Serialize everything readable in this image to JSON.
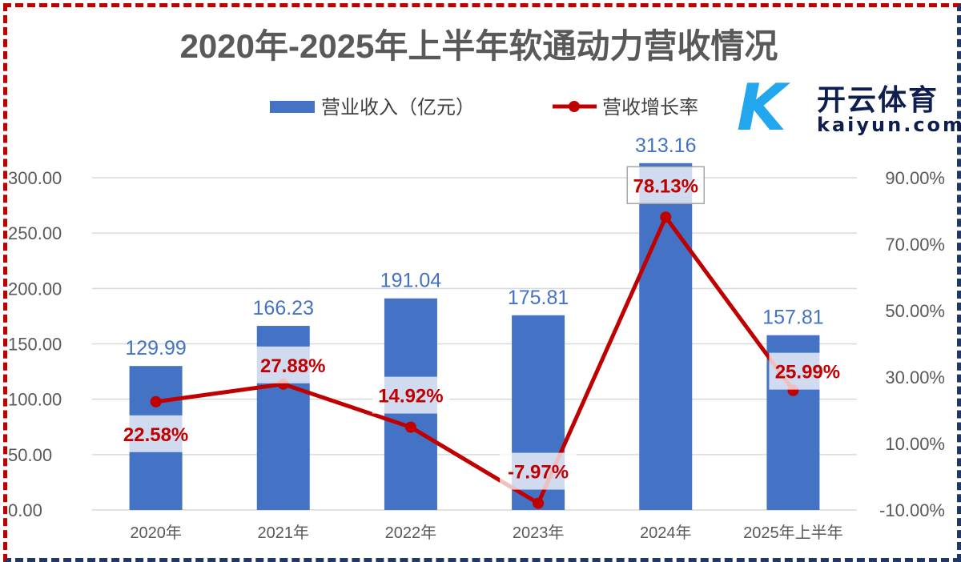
{
  "chart_data": {
    "type": "bar+line",
    "title": "2020年-2025年上半年软通动力营收情况",
    "categories": [
      "2020年",
      "2021年",
      "2022年",
      "2023年",
      "2024年",
      "2025年上半年"
    ],
    "series": [
      {
        "name": "营业收入（亿元）",
        "type": "bar",
        "axis": "left",
        "color": "#4472c4",
        "values": [
          129.99,
          166.23,
          191.04,
          175.81,
          313.16,
          157.81
        ],
        "labels": [
          "129.99",
          "166.23",
          "191.04",
          "175.81",
          "313.16",
          "157.81"
        ]
      },
      {
        "name": "营收增长率",
        "type": "line",
        "axis": "right",
        "color": "#c00000",
        "values": [
          22.58,
          27.88,
          14.92,
          -7.97,
          78.13,
          25.99
        ],
        "labels": [
          "22.58%",
          "27.88%",
          "14.92%",
          "-7.97%",
          "78.13%",
          "25.99%"
        ]
      }
    ],
    "left_axis": {
      "range": [
        0,
        300
      ],
      "ticks": [
        "0.00",
        "50.00",
        "100.00",
        "150.00",
        "200.00",
        "250.00",
        "300.00"
      ]
    },
    "right_axis": {
      "range": [
        -10,
        90
      ],
      "ticks": [
        "-10.00%",
        "10.00%",
        "30.00%",
        "50.00%",
        "70.00%",
        "90.00%"
      ]
    },
    "legend": "top",
    "grid": true
  },
  "watermark": {
    "cn": "开云体育",
    "en": "kaiyun.com"
  }
}
